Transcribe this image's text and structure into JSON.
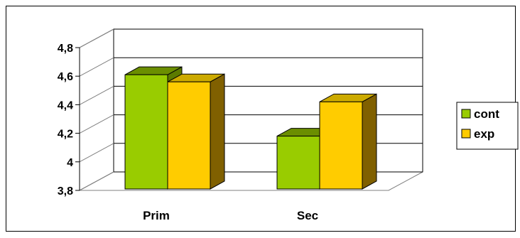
{
  "chart_data": {
    "type": "bar",
    "style": "3d-clustered",
    "categories": [
      "Prim",
      "Sec"
    ],
    "series": [
      {
        "name": "cont",
        "values": [
          4.64,
          4.21
        ],
        "color": "#99cc00",
        "side_color": "#5c7a00"
      },
      {
        "name": "exp",
        "values": [
          4.59,
          4.45
        ],
        "color": "#ffcc00",
        "side_color": "#806000"
      }
    ],
    "ylim": [
      3.8,
      4.8
    ],
    "yticks": [
      "3,8",
      "4",
      "4,2",
      "4,4",
      "4,6",
      "4,8"
    ],
    "ytick_values": [
      3.8,
      4.0,
      4.2,
      4.4,
      4.6,
      4.8
    ],
    "grid": true,
    "legend": "right"
  }
}
